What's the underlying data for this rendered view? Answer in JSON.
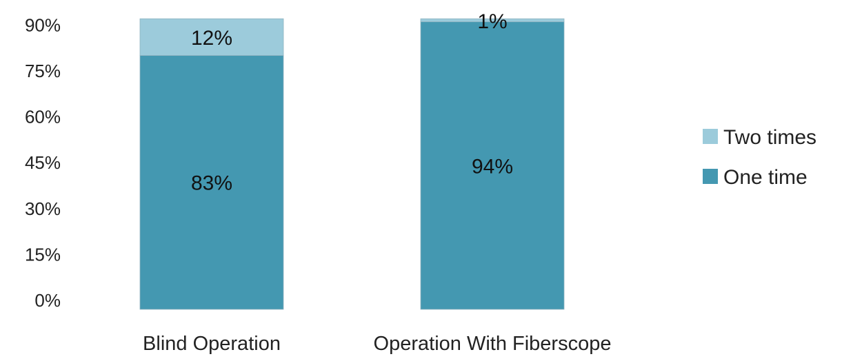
{
  "chart_data": {
    "type": "bar",
    "stacked": true,
    "categories": [
      "Blind Operation",
      "Operation With Fiberscope"
    ],
    "series": [
      {
        "name": "One time",
        "values": [
          83,
          94
        ],
        "labels": [
          "83%",
          "94%"
        ],
        "color": "#4498b1"
      },
      {
        "name": "Two times",
        "values": [
          12,
          1
        ],
        "labels": [
          "12%",
          "1%"
        ],
        "color": "#9ccbdb"
      }
    ],
    "y_ticks": [
      "0%",
      "15%",
      "30%",
      "45%",
      "60%",
      "75%",
      "90%"
    ],
    "y_tick_values": [
      0,
      15,
      30,
      45,
      60,
      75,
      90
    ],
    "ylim": [
      0,
      95
    ],
    "legend": {
      "position": "right",
      "entries": [
        "Two times",
        "One time"
      ]
    },
    "grid": false
  }
}
